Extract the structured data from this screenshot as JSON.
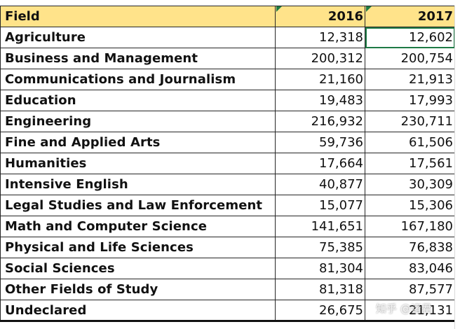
{
  "header": {
    "field": "Field",
    "year1": "2016",
    "year2": "2017"
  },
  "rows": [
    {
      "field": "Agriculture",
      "y2016": "12,318",
      "y2017": "12,602"
    },
    {
      "field": "Business and Management",
      "y2016": "200,312",
      "y2017": "200,754"
    },
    {
      "field": "Communications and Journalism",
      "y2016": "21,160",
      "y2017": "21,913"
    },
    {
      "field": "Education",
      "y2016": "19,483",
      "y2017": "17,993"
    },
    {
      "field": "Engineering",
      "y2016": "216,932",
      "y2017": "230,711"
    },
    {
      "field": "Fine and Applied Arts",
      "y2016": "59,736",
      "y2017": "61,506"
    },
    {
      "field": "Humanities",
      "y2016": "17,664",
      "y2017": "17,561"
    },
    {
      "field": "Intensive English",
      "y2016": "40,877",
      "y2017": "30,309"
    },
    {
      "field": "Legal Studies and Law Enforcement",
      "y2016": "15,077",
      "y2017": "15,306"
    },
    {
      "field": "Math and Computer Science",
      "y2016": "141,651",
      "y2017": "167,180"
    },
    {
      "field": "Physical and Life Sciences",
      "y2016": "75,385",
      "y2017": "76,838"
    },
    {
      "field": "Social Sciences",
      "y2016": "81,304",
      "y2017": "83,046"
    },
    {
      "field": "Other Fields of Study",
      "y2016": "81,318",
      "y2017": "87,577"
    },
    {
      "field": "Undeclared",
      "y2016": "26,675",
      "y2017": "21,131"
    }
  ],
  "watermark": "知乎 @诸君",
  "colors": {
    "header_fill": "#ffe38a",
    "selection": "#1e7a45",
    "grid": "#262626"
  }
}
